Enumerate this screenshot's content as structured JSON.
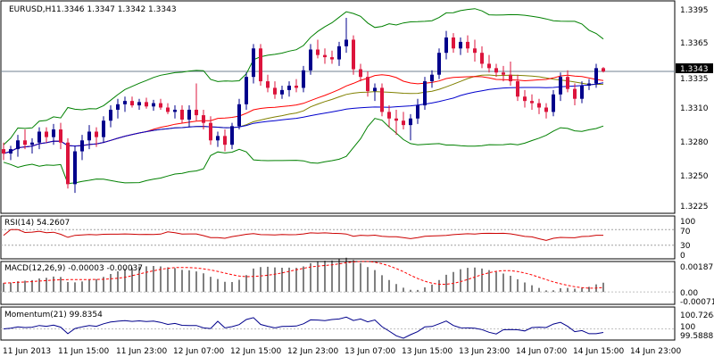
{
  "colors": {
    "bull": "#00008b",
    "bear": "#dc143c",
    "bollinger": "#008000",
    "ma_red": "#ff0000",
    "ma_blue": "#0000cd",
    "ma_olive": "#808000",
    "rsi": "#cc0000",
    "macd_signal": "#ff0000",
    "momentum": "#00008b",
    "level_label_bg": "#000000"
  },
  "main": {
    "symbol": "EURUSD,H1",
    "ohlc": "1.3346 1.3347 1.3342 1.3343",
    "price_ticks": [
      "1.3395",
      "1.3365",
      "1.3335",
      "1.3310",
      "1.3280",
      "1.3250",
      "1.3225"
    ],
    "current_level": "1.3343"
  },
  "rsi": {
    "title": "RSI(14) 54.2607",
    "ticks": [
      "100",
      "70",
      "30",
      "0"
    ]
  },
  "macd": {
    "title": "MACD(12,26,9) -0.00003 -0.00037",
    "ticks": [
      "0.00187",
      "0.00",
      "-0.00071"
    ]
  },
  "momentum": {
    "title": "Momentum(21) 99.8354",
    "ticks": [
      "100.7264",
      "100",
      "99.5888"
    ]
  },
  "time_labels": [
    "11 Jun 2013",
    "11 Jun 15:00",
    "11 Jun 23:00",
    "12 Jun 07:00",
    "12 Jun 15:00",
    "12 Jun 23:00",
    "13 Jun 07:00",
    "13 Jun 15:00",
    "13 Jun 23:00",
    "14 Jun 07:00",
    "14 Jun 15:00",
    "14 Jun 23:00"
  ],
  "chart_data": {
    "type": "candlestick",
    "symbol": "EURUSD",
    "timeframe": "H1",
    "ylim": [
      1.3215,
      1.3405
    ],
    "candles": [
      [
        1.3272,
        1.3278,
        1.3262,
        1.3268
      ],
      [
        1.3268,
        1.3275,
        1.3262,
        1.3272
      ],
      [
        1.3272,
        1.3285,
        1.3265,
        1.328
      ],
      [
        1.328,
        1.329,
        1.3272,
        1.3276
      ],
      [
        1.3276,
        1.3282,
        1.3268,
        1.3278
      ],
      [
        1.3278,
        1.3292,
        1.3272,
        1.3288
      ],
      [
        1.3288,
        1.3292,
        1.3278,
        1.3283
      ],
      [
        1.3283,
        1.3295,
        1.3276,
        1.329
      ],
      [
        1.329,
        1.3296,
        1.3272,
        1.3278
      ],
      [
        1.3278,
        1.3282,
        1.3236,
        1.324
      ],
      [
        1.324,
        1.3275,
        1.3232,
        1.327
      ],
      [
        1.327,
        1.3285,
        1.3262,
        1.328
      ],
      [
        1.328,
        1.3294,
        1.3272,
        1.3288
      ],
      [
        1.3288,
        1.3292,
        1.3274,
        1.3283
      ],
      [
        1.3283,
        1.3302,
        1.3278,
        1.3298
      ],
      [
        1.3298,
        1.3312,
        1.3292,
        1.3308
      ],
      [
        1.3308,
        1.3318,
        1.33,
        1.3313
      ],
      [
        1.3313,
        1.332,
        1.3306,
        1.3316
      ],
      [
        1.3316,
        1.332,
        1.331,
        1.3312
      ],
      [
        1.3312,
        1.3318,
        1.3308,
        1.3315
      ],
      [
        1.3315,
        1.3319,
        1.3309,
        1.3311
      ],
      [
        1.3311,
        1.3317,
        1.3307,
        1.3314
      ],
      [
        1.3314,
        1.3318,
        1.3308,
        1.331
      ],
      [
        1.331,
        1.3314,
        1.3304,
        1.3306
      ],
      [
        1.3306,
        1.3312,
        1.33,
        1.3308
      ],
      [
        1.3308,
        1.3312,
        1.3296,
        1.3299
      ],
      [
        1.3299,
        1.3312,
        1.3292,
        1.3308
      ],
      [
        1.3308,
        1.3332,
        1.3298,
        1.3303
      ],
      [
        1.3303,
        1.3308,
        1.329,
        1.3296
      ],
      [
        1.3296,
        1.3302,
        1.3276,
        1.328
      ],
      [
        1.328,
        1.3288,
        1.3274,
        1.3284
      ],
      [
        1.3284,
        1.329,
        1.327,
        1.3276
      ],
      [
        1.3276,
        1.3296,
        1.3272,
        1.3293
      ],
      [
        1.3293,
        1.3318,
        1.329,
        1.3313
      ],
      [
        1.3313,
        1.3342,
        1.3308,
        1.3338
      ],
      [
        1.3338,
        1.3368,
        1.3332,
        1.3364
      ],
      [
        1.3364,
        1.3368,
        1.333,
        1.3334
      ],
      [
        1.3334,
        1.334,
        1.3324,
        1.3328
      ],
      [
        1.3328,
        1.3334,
        1.3318,
        1.3322
      ],
      [
        1.3322,
        1.333,
        1.3318,
        1.3326
      ],
      [
        1.3326,
        1.3334,
        1.332,
        1.333
      ],
      [
        1.333,
        1.3336,
        1.3324,
        1.3328
      ],
      [
        1.3328,
        1.3348,
        1.3324,
        1.3344
      ],
      [
        1.3344,
        1.3368,
        1.334,
        1.3363
      ],
      [
        1.3363,
        1.3372,
        1.3355,
        1.3358
      ],
      [
        1.3358,
        1.3364,
        1.335,
        1.3356
      ],
      [
        1.3356,
        1.3362,
        1.335,
        1.3354
      ],
      [
        1.3354,
        1.337,
        1.3348,
        1.3366
      ],
      [
        1.3366,
        1.3392,
        1.336,
        1.3372
      ],
      [
        1.3372,
        1.3376,
        1.334,
        1.3345
      ],
      [
        1.3345,
        1.335,
        1.3334,
        1.3338
      ],
      [
        1.3338,
        1.3343,
        1.332,
        1.3325
      ],
      [
        1.3325,
        1.3332,
        1.3316,
        1.3328
      ],
      [
        1.3328,
        1.3332,
        1.3302,
        1.3306
      ],
      [
        1.3306,
        1.3312,
        1.3292,
        1.33
      ],
      [
        1.33,
        1.3308,
        1.3285,
        1.3298
      ],
      [
        1.3298,
        1.3306,
        1.329,
        1.3294
      ],
      [
        1.3294,
        1.3304,
        1.328,
        1.33
      ],
      [
        1.33,
        1.3318,
        1.3295,
        1.3312
      ],
      [
        1.3312,
        1.3338,
        1.3308,
        1.3334
      ],
      [
        1.3334,
        1.3344,
        1.3328,
        1.334
      ],
      [
        1.334,
        1.3364,
        1.3336,
        1.336
      ],
      [
        1.336,
        1.338,
        1.3354,
        1.3374
      ],
      [
        1.3374,
        1.3378,
        1.336,
        1.3364
      ],
      [
        1.3364,
        1.3374,
        1.3358,
        1.337
      ],
      [
        1.337,
        1.3376,
        1.336,
        1.3364
      ],
      [
        1.3364,
        1.3372,
        1.3352,
        1.336
      ],
      [
        1.336,
        1.3366,
        1.3346,
        1.335
      ],
      [
        1.335,
        1.3358,
        1.3342,
        1.3346
      ],
      [
        1.3346,
        1.335,
        1.3338,
        1.3342
      ],
      [
        1.3342,
        1.3348,
        1.3334,
        1.334
      ],
      [
        1.334,
        1.3352,
        1.333,
        1.3334
      ],
      [
        1.3334,
        1.334,
        1.3316,
        1.332
      ],
      [
        1.332,
        1.3326,
        1.331,
        1.3316
      ],
      [
        1.3316,
        1.3322,
        1.3308,
        1.3314
      ],
      [
        1.3314,
        1.3318,
        1.3304,
        1.331
      ],
      [
        1.331,
        1.3314,
        1.33,
        1.3306
      ],
      [
        1.3306,
        1.3326,
        1.3302,
        1.3322
      ],
      [
        1.3322,
        1.3342,
        1.3316,
        1.3338
      ],
      [
        1.3338,
        1.3344,
        1.3324,
        1.3327
      ],
      [
        1.3327,
        1.3332,
        1.3312,
        1.3318
      ],
      [
        1.3318,
        1.3334,
        1.3314,
        1.333
      ],
      [
        1.333,
        1.3336,
        1.3326,
        1.3332
      ],
      [
        1.3332,
        1.335,
        1.3328,
        1.3346
      ],
      [
        1.3346,
        1.3347,
        1.3342,
        1.3343
      ]
    ],
    "indicators": {
      "bollinger_bands": "upper/middle/lower",
      "moving_averages": [
        "red",
        "blue",
        "olive"
      ]
    },
    "rsi_value": 54.2607,
    "rsi_levels": [
      70,
      30
    ],
    "macd_main": -3e-05,
    "macd_signal": -0.00037,
    "momentum_value": 99.8354
  }
}
